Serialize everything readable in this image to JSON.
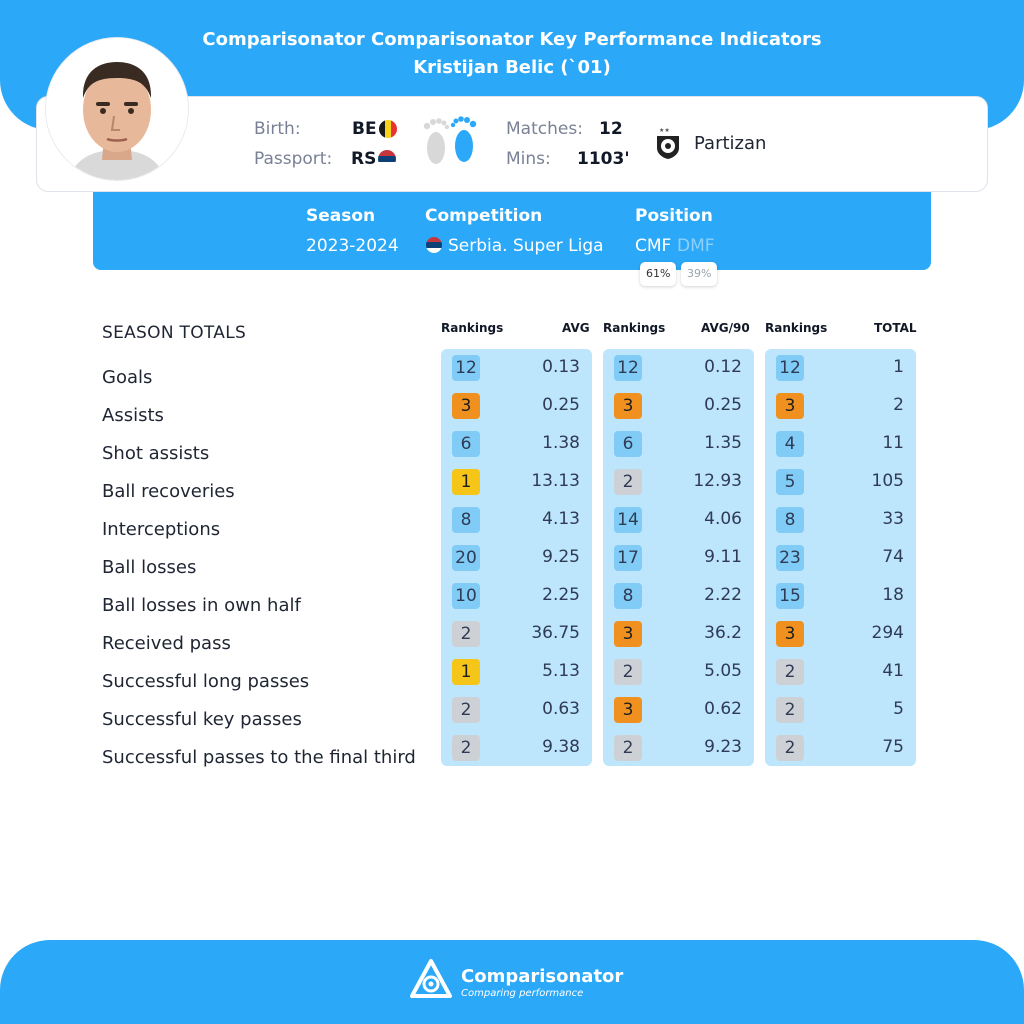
{
  "header": {
    "title_line1": "Comparisonator Comparisonator Key Performance Indicators",
    "title_line2": "Kristijan Belic (`01)"
  },
  "player": {
    "birth_label": "Birth:",
    "birth_code": "BE",
    "passport_label": "Passport:",
    "passport_code": "RS",
    "matches_label": "Matches:",
    "matches_value": "12",
    "mins_label": "Mins:",
    "mins_value": "1103'",
    "club": "Partizan"
  },
  "season_info": {
    "season_label": "Season",
    "season_value": "2023-2024",
    "competition_label": "Competition",
    "competition_value": "Serbia. Super Liga",
    "position_label": "Position",
    "position_primary": "CMF",
    "position_secondary": "DMF",
    "position_primary_pct": "61%",
    "position_secondary_pct": "39%"
  },
  "table": {
    "section_title": "SEASON TOTALS",
    "headers": [
      "Rankings",
      "AVG",
      "Rankings",
      "AVG/90",
      "Rankings",
      "TOTAL"
    ],
    "rows": [
      {
        "label": "Goals",
        "r1": "12",
        "avg": "0.13",
        "r2": "12",
        "avg90": "0.12",
        "r3": "12",
        "total": "1",
        "c1": "blue",
        "c2": "blue",
        "c3": "blue"
      },
      {
        "label": "Assists",
        "r1": "3",
        "avg": "0.25",
        "r2": "3",
        "avg90": "0.25",
        "r3": "3",
        "total": "2",
        "c1": "orange",
        "c2": "orange",
        "c3": "orange"
      },
      {
        "label": "Shot assists",
        "r1": "6",
        "avg": "1.38",
        "r2": "6",
        "avg90": "1.35",
        "r3": "4",
        "total": "11",
        "c1": "blue",
        "c2": "blue",
        "c3": "blue"
      },
      {
        "label": "Ball recoveries",
        "r1": "1",
        "avg": "13.13",
        "r2": "2",
        "avg90": "12.93",
        "r3": "5",
        "total": "105",
        "c1": "gold",
        "c2": "grey",
        "c3": "blue"
      },
      {
        "label": "Interceptions",
        "r1": "8",
        "avg": "4.13",
        "r2": "14",
        "avg90": "4.06",
        "r3": "8",
        "total": "33",
        "c1": "blue",
        "c2": "blue",
        "c3": "blue"
      },
      {
        "label": "Ball losses",
        "r1": "20",
        "avg": "9.25",
        "r2": "17",
        "avg90": "9.11",
        "r3": "23",
        "total": "74",
        "c1": "blue",
        "c2": "blue",
        "c3": "blue"
      },
      {
        "label": "Ball losses in own half",
        "r1": "10",
        "avg": "2.25",
        "r2": "8",
        "avg90": "2.22",
        "r3": "15",
        "total": "18",
        "c1": "blue",
        "c2": "blue",
        "c3": "blue"
      },
      {
        "label": "Received pass",
        "r1": "2",
        "avg": "36.75",
        "r2": "3",
        "avg90": "36.2",
        "r3": "3",
        "total": "294",
        "c1": "grey",
        "c2": "orange",
        "c3": "orange"
      },
      {
        "label": "Successful long passes",
        "r1": "1",
        "avg": "5.13",
        "r2": "2",
        "avg90": "5.05",
        "r3": "2",
        "total": "41",
        "c1": "gold",
        "c2": "grey",
        "c3": "grey"
      },
      {
        "label": "Successful key passes",
        "r1": "2",
        "avg": "0.63",
        "r2": "3",
        "avg90": "0.62",
        "r3": "2",
        "total": "5",
        "c1": "grey",
        "c2": "orange",
        "c3": "grey"
      },
      {
        "label": "Successful passes to the final third",
        "r1": "2",
        "avg": "9.38",
        "r2": "2",
        "avg90": "9.23",
        "r3": "2",
        "total": "75",
        "c1": "grey",
        "c2": "grey",
        "c3": "grey"
      }
    ]
  },
  "footer": {
    "brand": "Comparisonator",
    "tagline": "Comparing performance"
  },
  "colors": {
    "brand_blue": "#2ba8f8",
    "panel_blue": "#bde5fb",
    "rank_blue": "#80ccf6",
    "rank_orange": "#f0901f",
    "rank_gold": "#f5c518",
    "rank_grey": "#cdd1d6"
  },
  "icons": [
    "player-photo",
    "belgium-flag-icon",
    "serbia-flag-icon",
    "feet-icon",
    "partizan-crest-icon",
    "comparisonator-logo-icon"
  ]
}
